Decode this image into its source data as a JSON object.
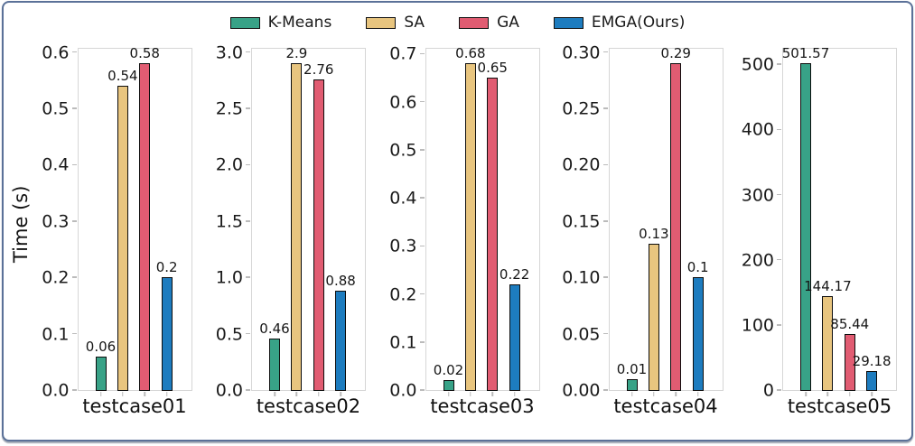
{
  "figure": {
    "frame_border_color": "#5b7198",
    "background": "#ffffff"
  },
  "chart_data": {
    "type": "bar",
    "title": "",
    "ylabel": "Time (s)",
    "xlabel": "",
    "grid": false,
    "legend_position": "top-center",
    "series": [
      {
        "name": "K-Means",
        "color": "#38a287"
      },
      {
        "name": "SA",
        "color": "#e8c57f"
      },
      {
        "name": "GA",
        "color": "#e15c72"
      },
      {
        "name": "EMGA(Ours)",
        "color": "#1d7cbf"
      }
    ],
    "subplots": [
      {
        "category": "testcase01",
        "ylim": [
          0,
          0.6
        ],
        "ytick_labels": [
          "0.0",
          "0.1",
          "0.2",
          "0.3",
          "0.4",
          "0.5",
          "0.6"
        ],
        "values": [
          0.06,
          0.54,
          0.58,
          0.2
        ],
        "bar_labels": [
          "0.06",
          "0.54",
          "0.58",
          "0.2"
        ]
      },
      {
        "category": "testcase02",
        "ylim": [
          0,
          3.0
        ],
        "ytick_labels": [
          "0.0",
          "0.5",
          "1.0",
          "1.5",
          "2.0",
          "2.5",
          "3.0"
        ],
        "values": [
          0.46,
          2.9,
          2.76,
          0.88
        ],
        "bar_labels": [
          "0.46",
          "2.9",
          "2.76",
          "0.88"
        ]
      },
      {
        "category": "testcase03",
        "ylim": [
          0,
          0.7
        ],
        "ytick_labels": [
          "0.0",
          "0.1",
          "0.2",
          "0.3",
          "0.4",
          "0.5",
          "0.6",
          "0.7"
        ],
        "values": [
          0.02,
          0.68,
          0.65,
          0.22
        ],
        "bar_labels": [
          "0.02",
          "0.68",
          "0.65",
          "0.22"
        ]
      },
      {
        "category": "testcase04",
        "ylim": [
          0,
          0.3
        ],
        "ytick_labels": [
          "0.00",
          "0.05",
          "0.10",
          "0.15",
          "0.20",
          "0.25",
          "0.30"
        ],
        "values": [
          0.01,
          0.13,
          0.29,
          0.1
        ],
        "bar_labels": [
          "0.01",
          "0.13",
          "0.29",
          "0.1"
        ]
      },
      {
        "category": "testcase05",
        "ylim": [
          0,
          500
        ],
        "ytick_labels": [
          "0",
          "100",
          "200",
          "300",
          "400",
          "500"
        ],
        "values": [
          501.57,
          144.17,
          85.44,
          29.18
        ],
        "bar_labels": [
          "501.57",
          "144.17",
          "85.44",
          "29.18"
        ]
      }
    ]
  }
}
